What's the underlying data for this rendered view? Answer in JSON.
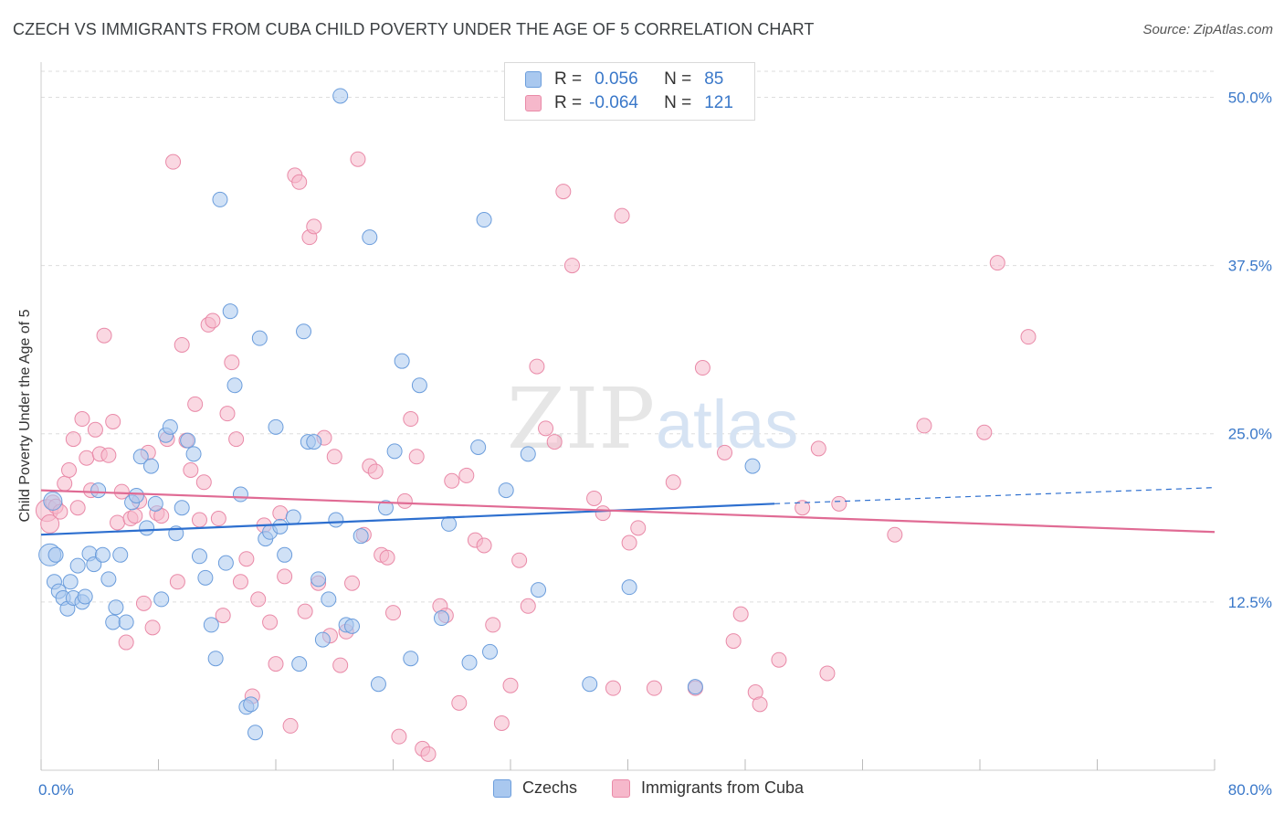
{
  "title": "CZECH VS IMMIGRANTS FROM CUBA CHILD POVERTY UNDER THE AGE OF 5 CORRELATION CHART",
  "source": "Source: ZipAtlas.com",
  "colors": {
    "czech_fill": "#a9c8ef",
    "czech_stroke": "#6b9ddc",
    "czech_line": "#2d6fcf",
    "cuba_fill": "#f6b8cb",
    "cuba_stroke": "#e98aa8",
    "cuba_line": "#e06b94",
    "axis_text": "#3a78c9",
    "grid": "#dddddd"
  },
  "legend": {
    "rows": [
      {
        "r_label": "R =",
        "r_value": "0.056",
        "n_label": "N =",
        "n_value": "85"
      },
      {
        "r_label": "R =",
        "r_value": "-0.064",
        "n_label": "N =",
        "n_value": "121"
      }
    ]
  },
  "bottom_legend": {
    "czech": "Czechs",
    "cuba": "Immigrants from Cuba"
  },
  "watermark": {
    "zip": "ZIP",
    "atlas": "atlas"
  },
  "chart_data": {
    "type": "scatter",
    "title": "CZECH VS IMMIGRANTS FROM CUBA CHILD POVERTY UNDER THE AGE OF 5 CORRELATION CHART",
    "xlabel": "",
    "ylabel": "Child Poverty Under the Age of 5",
    "xlim": [
      0,
      80
    ],
    "ylim": [
      0,
      52
    ],
    "x_tick_labels": [
      "0.0%",
      "80.0%"
    ],
    "y_ticks": [
      12.5,
      25.0,
      37.5,
      50.0
    ],
    "y_tick_labels": [
      "12.5%",
      "25.0%",
      "37.5%",
      "50.0%"
    ],
    "grid": true,
    "series": [
      {
        "name": "Czechs",
        "r": 0.056,
        "n": 85,
        "trend": {
          "x": [
            0,
            50
          ],
          "y": [
            17.5,
            19.8
          ],
          "dashed_to": [
            80,
            21.0
          ]
        },
        "points": [
          [
            0.6,
            16.0
          ],
          [
            0.8,
            20.0
          ],
          [
            0.9,
            14.0
          ],
          [
            1.2,
            13.3
          ],
          [
            1.5,
            12.8
          ],
          [
            1.8,
            12.0
          ],
          [
            2.2,
            12.8
          ],
          [
            2.5,
            15.2
          ],
          [
            2.8,
            12.5
          ],
          [
            3.0,
            12.9
          ],
          [
            3.3,
            16.1
          ],
          [
            3.6,
            15.3
          ],
          [
            3.9,
            20.8
          ],
          [
            4.2,
            16.0
          ],
          [
            4.6,
            14.2
          ],
          [
            4.9,
            11.0
          ],
          [
            5.1,
            12.1
          ],
          [
            5.4,
            16.0
          ],
          [
            5.8,
            11.0
          ],
          [
            6.2,
            19.9
          ],
          [
            6.5,
            20.4
          ],
          [
            6.8,
            23.3
          ],
          [
            7.2,
            18.0
          ],
          [
            7.5,
            22.6
          ],
          [
            7.8,
            19.8
          ],
          [
            8.2,
            12.7
          ],
          [
            8.5,
            24.9
          ],
          [
            8.8,
            25.5
          ],
          [
            9.2,
            17.6
          ],
          [
            9.6,
            19.5
          ],
          [
            10.0,
            24.5
          ],
          [
            10.4,
            23.5
          ],
          [
            10.8,
            15.9
          ],
          [
            11.2,
            14.3
          ],
          [
            11.6,
            10.8
          ],
          [
            11.9,
            8.3
          ],
          [
            12.2,
            42.4
          ],
          [
            12.6,
            15.4
          ],
          [
            12.9,
            34.1
          ],
          [
            13.2,
            28.6
          ],
          [
            13.6,
            20.5
          ],
          [
            14.0,
            4.7
          ],
          [
            14.3,
            4.9
          ],
          [
            14.6,
            2.8
          ],
          [
            14.9,
            32.1
          ],
          [
            15.3,
            17.2
          ],
          [
            15.6,
            17.7
          ],
          [
            16.0,
            25.5
          ],
          [
            16.3,
            18.1
          ],
          [
            16.6,
            16.0
          ],
          [
            17.2,
            18.8
          ],
          [
            17.6,
            7.9
          ],
          [
            17.9,
            32.6
          ],
          [
            18.2,
            24.4
          ],
          [
            18.6,
            24.4
          ],
          [
            18.9,
            14.2
          ],
          [
            19.2,
            9.7
          ],
          [
            19.6,
            12.7
          ],
          [
            20.1,
            18.6
          ],
          [
            20.4,
            50.1
          ],
          [
            20.8,
            10.8
          ],
          [
            21.2,
            10.7
          ],
          [
            21.8,
            17.4
          ],
          [
            22.4,
            39.6
          ],
          [
            23.0,
            6.4
          ],
          [
            23.5,
            19.5
          ],
          [
            24.1,
            23.7
          ],
          [
            24.6,
            30.4
          ],
          [
            25.2,
            8.3
          ],
          [
            25.8,
            28.6
          ],
          [
            27.3,
            11.3
          ],
          [
            27.8,
            18.3
          ],
          [
            29.2,
            8.0
          ],
          [
            29.8,
            24.0
          ],
          [
            30.2,
            40.9
          ],
          [
            30.6,
            8.8
          ],
          [
            31.7,
            20.8
          ],
          [
            33.2,
            23.5
          ],
          [
            33.9,
            13.4
          ],
          [
            37.4,
            6.4
          ],
          [
            40.1,
            13.6
          ],
          [
            44.6,
            6.2
          ],
          [
            48.5,
            22.6
          ],
          [
            1.0,
            16.0
          ],
          [
            2.0,
            14.0
          ]
        ]
      },
      {
        "name": "Immigrants from Cuba",
        "r": -0.064,
        "n": 121,
        "trend": {
          "x": [
            0,
            80
          ],
          "y": [
            20.8,
            17.7
          ]
        },
        "points": [
          [
            0.4,
            19.3
          ],
          [
            0.6,
            18.3
          ],
          [
            0.8,
            19.9
          ],
          [
            1.0,
            19.6
          ],
          [
            1.3,
            19.2
          ],
          [
            1.6,
            21.3
          ],
          [
            1.9,
            22.3
          ],
          [
            2.2,
            24.6
          ],
          [
            2.5,
            19.5
          ],
          [
            2.8,
            26.1
          ],
          [
            3.1,
            23.2
          ],
          [
            3.4,
            20.8
          ],
          [
            3.7,
            25.3
          ],
          [
            4.0,
            23.5
          ],
          [
            4.3,
            32.3
          ],
          [
            4.6,
            23.4
          ],
          [
            4.9,
            25.9
          ],
          [
            5.2,
            18.4
          ],
          [
            5.5,
            20.7
          ],
          [
            5.8,
            9.5
          ],
          [
            6.1,
            18.7
          ],
          [
            6.4,
            18.9
          ],
          [
            6.7,
            20.0
          ],
          [
            7.0,
            12.4
          ],
          [
            7.3,
            23.6
          ],
          [
            7.6,
            10.6
          ],
          [
            7.9,
            19.1
          ],
          [
            8.2,
            18.9
          ],
          [
            8.6,
            24.6
          ],
          [
            9.0,
            45.2
          ],
          [
            9.3,
            14.0
          ],
          [
            9.6,
            31.6
          ],
          [
            9.9,
            24.5
          ],
          [
            10.2,
            22.3
          ],
          [
            10.5,
            27.2
          ],
          [
            10.8,
            18.6
          ],
          [
            11.1,
            21.4
          ],
          [
            11.4,
            33.1
          ],
          [
            11.7,
            33.4
          ],
          [
            12.1,
            18.7
          ],
          [
            12.4,
            11.5
          ],
          [
            12.7,
            26.5
          ],
          [
            13.0,
            30.3
          ],
          [
            13.3,
            24.6
          ],
          [
            13.6,
            14.0
          ],
          [
            14.0,
            15.7
          ],
          [
            14.4,
            5.5
          ],
          [
            14.8,
            12.7
          ],
          [
            15.2,
            18.2
          ],
          [
            15.6,
            11.0
          ],
          [
            16.0,
            7.9
          ],
          [
            16.3,
            19.1
          ],
          [
            16.6,
            14.4
          ],
          [
            17.0,
            3.3
          ],
          [
            17.3,
            44.2
          ],
          [
            17.6,
            43.7
          ],
          [
            18.0,
            11.8
          ],
          [
            18.3,
            39.6
          ],
          [
            18.6,
            40.4
          ],
          [
            18.9,
            13.9
          ],
          [
            19.3,
            24.7
          ],
          [
            19.7,
            10.0
          ],
          [
            20.0,
            23.3
          ],
          [
            20.4,
            7.8
          ],
          [
            20.8,
            10.3
          ],
          [
            21.2,
            13.9
          ],
          [
            21.6,
            45.4
          ],
          [
            22.0,
            17.5
          ],
          [
            22.4,
            22.6
          ],
          [
            22.8,
            22.2
          ],
          [
            23.2,
            16.0
          ],
          [
            23.6,
            15.8
          ],
          [
            24.0,
            11.7
          ],
          [
            24.4,
            2.5
          ],
          [
            24.8,
            20.0
          ],
          [
            25.2,
            26.1
          ],
          [
            25.6,
            23.3
          ],
          [
            26.0,
            1.6
          ],
          [
            26.4,
            1.2
          ],
          [
            27.2,
            12.2
          ],
          [
            27.6,
            11.5
          ],
          [
            28.0,
            21.5
          ],
          [
            28.5,
            5.0
          ],
          [
            29.0,
            21.9
          ],
          [
            29.6,
            17.1
          ],
          [
            30.2,
            16.7
          ],
          [
            30.8,
            10.8
          ],
          [
            31.4,
            3.5
          ],
          [
            32.0,
            6.3
          ],
          [
            32.6,
            15.6
          ],
          [
            33.2,
            12.2
          ],
          [
            33.8,
            30.0
          ],
          [
            34.4,
            25.4
          ],
          [
            35.0,
            24.4
          ],
          [
            35.6,
            43.0
          ],
          [
            36.2,
            37.5
          ],
          [
            37.7,
            20.2
          ],
          [
            38.3,
            19.1
          ],
          [
            39.0,
            6.1
          ],
          [
            39.6,
            41.2
          ],
          [
            40.1,
            16.9
          ],
          [
            40.7,
            18.0
          ],
          [
            41.8,
            6.1
          ],
          [
            43.1,
            21.4
          ],
          [
            44.6,
            6.1
          ],
          [
            45.1,
            29.9
          ],
          [
            46.6,
            23.6
          ],
          [
            47.2,
            9.6
          ],
          [
            47.7,
            11.6
          ],
          [
            48.7,
            5.8
          ],
          [
            49.0,
            4.9
          ],
          [
            50.3,
            8.2
          ],
          [
            51.9,
            19.5
          ],
          [
            53.0,
            23.9
          ],
          [
            53.6,
            7.2
          ],
          [
            54.4,
            19.8
          ],
          [
            58.2,
            17.5
          ],
          [
            60.2,
            25.6
          ],
          [
            64.3,
            25.1
          ],
          [
            65.2,
            37.7
          ],
          [
            67.3,
            32.2
          ]
        ]
      }
    ]
  }
}
